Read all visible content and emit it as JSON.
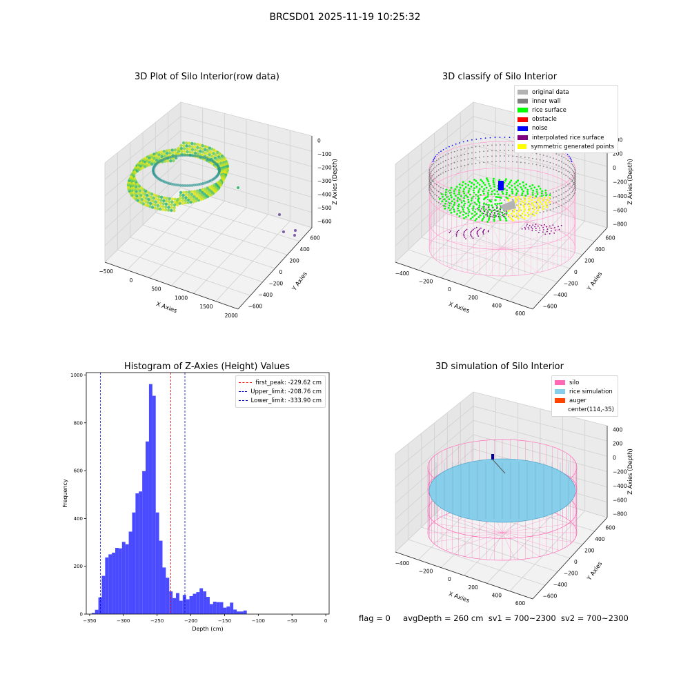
{
  "suptitle": "BRCSD01 2025-11-19 10:25:32",
  "panels": {
    "raw": {
      "title": "3D Plot of Silo Interior(row data)",
      "xlabel": "X Axies",
      "ylabel": "Y Axies",
      "zlabel": "Z Axies (Depth)",
      "xticks": [
        "−500",
        "0",
        "500",
        "1000",
        "1500",
        "2000"
      ],
      "yticks": [
        "600",
        "400",
        "200",
        "0",
        "−200",
        "−400",
        "−600"
      ],
      "zticks": [
        "0",
        "−100",
        "−200",
        "−300",
        "−400",
        "−500",
        "−600"
      ]
    },
    "classify": {
      "title": "3D classify of Silo Interior",
      "xlabel": "X Axies",
      "ylabel": "Y Axies",
      "zlabel": "Z Axies (Depth)",
      "xticks": [
        "−400",
        "−200",
        "0",
        "200",
        "400",
        "600"
      ],
      "yticks": [
        "600",
        "400",
        "200",
        "0",
        "−200",
        "−400",
        "−600"
      ],
      "zticks": [
        "400",
        "200",
        "0",
        "−200",
        "−400",
        "−600",
        "−800"
      ],
      "legend": [
        {
          "label": "original data",
          "color": "#b3b3b3"
        },
        {
          "label": "inner wall",
          "color": "#808080"
        },
        {
          "label": "rice surface",
          "color": "#00ff00"
        },
        {
          "label": "obstacle",
          "color": "#ff0000"
        },
        {
          "label": "noise",
          "color": "#0000ff"
        },
        {
          "label": "interpolated rice surface",
          "color": "#800080"
        },
        {
          "label": "symmetric generated points",
          "color": "#ffff00"
        }
      ]
    },
    "simulation": {
      "title": "3D simulation of Silo Interior",
      "xlabel": "X Axies",
      "ylabel": "Y Axies",
      "zlabel": "Z Axies (Depth)",
      "xticks": [
        "−400",
        "−200",
        "0",
        "200",
        "400",
        "600"
      ],
      "yticks": [
        "600",
        "400",
        "200",
        "0",
        "−200",
        "−400",
        "−600"
      ],
      "zticks": [
        "400",
        "200",
        "0",
        "−200",
        "−400",
        "−600",
        "−800"
      ],
      "legend": [
        {
          "label": "silo",
          "color": "#ff69b4"
        },
        {
          "label": "rice simulation",
          "color": "#87ceeb"
        },
        {
          "label": "auger",
          "color": "#ff4500"
        },
        {
          "label": "center(114,-35)",
          "color": "#ffffff"
        }
      ]
    }
  },
  "chart_data": {
    "type": "bar",
    "title": "Histogram of Z-Axies (Height) Values",
    "xlabel": "Depth (cm)",
    "ylabel": "Frequency",
    "xlim": [
      -355,
      5
    ],
    "ylim": [
      0,
      1010
    ],
    "xticks": [
      -350,
      -300,
      -250,
      -200,
      -150,
      -100,
      -50,
      0
    ],
    "yticks": [
      0,
      200,
      400,
      600,
      800,
      1000
    ],
    "bar_color": "#4a4aff",
    "bin_start": -347,
    "bin_width": 5.0,
    "values": [
      5,
      18,
      70,
      160,
      237,
      250,
      257,
      277,
      275,
      302,
      292,
      345,
      425,
      505,
      513,
      598,
      722,
      962,
      913,
      425,
      307,
      195,
      152,
      95,
      67,
      88,
      56,
      80,
      62,
      75,
      85,
      92,
      108,
      95,
      72,
      42,
      52,
      50,
      50,
      27,
      32,
      48,
      19,
      11,
      11,
      15
    ],
    "lines": [
      {
        "label": "first_peak: -229.62 cm",
        "x": -229.62,
        "color": "#ff0000"
      },
      {
        "label": "Upper_limit: -208.76 cm",
        "x": -208.76,
        "color": "#0000cc"
      },
      {
        "label": "Lower_limit: -333.90 cm",
        "x": -333.9,
        "color": "#0000cc"
      }
    ]
  },
  "footer": {
    "flag": "flag = 0",
    "avg": "avgDepth = 260 cm",
    "sv1": "sv1 = 700~2300",
    "sv2": "sv2 = 700~2300"
  }
}
